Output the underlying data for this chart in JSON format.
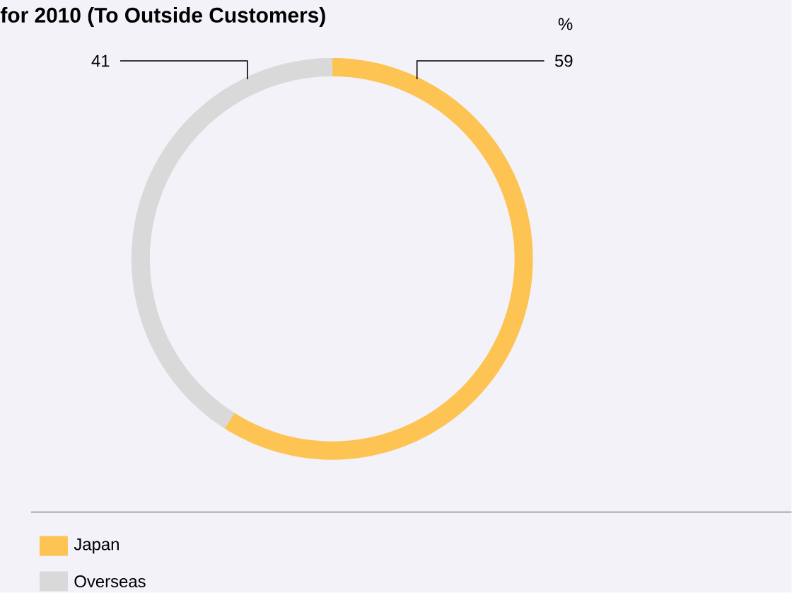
{
  "chart_data": {
    "type": "donut",
    "title": "for 2010 (To Outside Customers)",
    "categories": [
      "Japan",
      "Overseas"
    ],
    "values": [
      59,
      41
    ],
    "colors": [
      "#fdc453",
      "#d9d9d9"
    ],
    "data_labels": true,
    "legend": "bottom left",
    "annotations": [
      "%"
    ]
  }
}
